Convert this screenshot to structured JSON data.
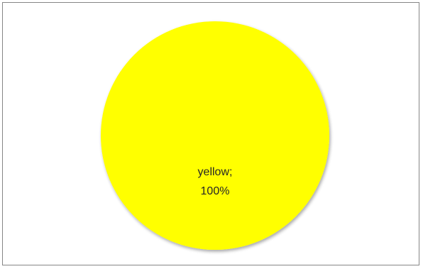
{
  "chart_data": {
    "type": "pie",
    "title": "",
    "slices": [
      {
        "label": "yellow",
        "value": 100,
        "percent_label": "100%",
        "label_sep": ";",
        "color": "#FFFF00"
      }
    ],
    "legend": "none",
    "border_color": "#868686"
  }
}
